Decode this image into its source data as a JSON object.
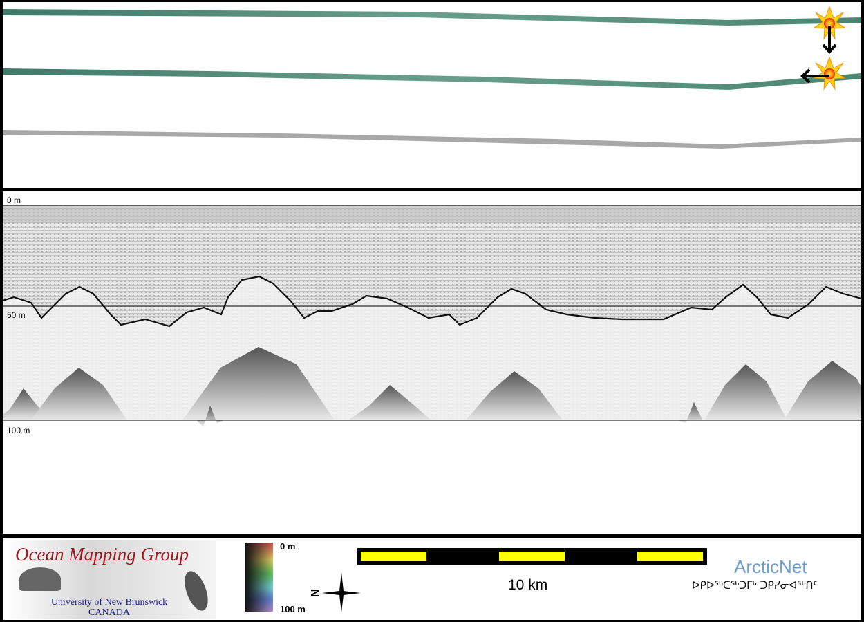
{
  "track_panel": {
    "markers": [
      "sun-marker-start",
      "sun-marker-end"
    ],
    "colors": {
      "swath": "#4f8a76",
      "backscatter": "#9a9a9a"
    }
  },
  "profile_panel": {
    "depth_labels": [
      "0 m",
      "50 m",
      "100 m"
    ]
  },
  "footer": {
    "logo": {
      "title": "Ocean Mapping Group",
      "line1": "University of New Brunswick",
      "line2": "CANADA"
    },
    "depth_legend": {
      "top": "0 m",
      "bottom": "100 m"
    },
    "compass": {
      "north": "N"
    },
    "scale_bar": {
      "label": "10 km",
      "colors": [
        "#ffff00",
        "#000000"
      ]
    },
    "arcticnet": {
      "name": "ArcticNet",
      "syllabics": "ᐅᑭᐅᖅᑕᖅᑐᒥᒃ ᑐᑭᓯᓂᐊᖅᑎᑦ"
    }
  }
}
